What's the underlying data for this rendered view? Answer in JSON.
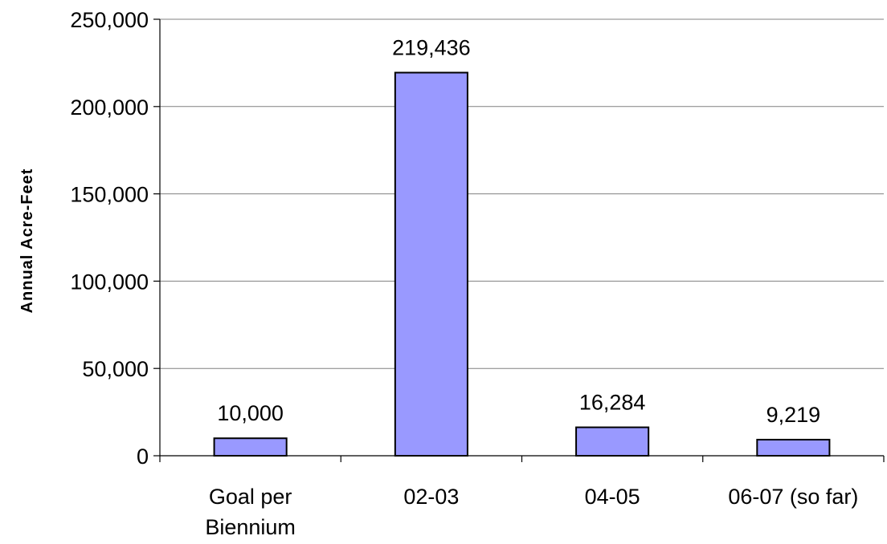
{
  "chart_data": {
    "type": "bar",
    "title": "",
    "xlabel": "",
    "ylabel": "Annual Acre-Feet",
    "categories": [
      [
        "Goal per",
        "Biennium"
      ],
      [
        "02-03"
      ],
      [
        "04-05"
      ],
      [
        "06-07 (so far)"
      ]
    ],
    "values": [
      10000,
      219436,
      16284,
      9219
    ],
    "data_labels": [
      "10,000",
      "219,436",
      "16,284",
      "9,219"
    ],
    "ylim": [
      0,
      250000
    ],
    "yticks": [
      0,
      50000,
      100000,
      150000,
      200000,
      250000
    ],
    "ytick_labels": [
      "0",
      "50,000",
      "100,000",
      "150,000",
      "200,000",
      "250,000"
    ],
    "grid": true,
    "legend": "none",
    "bar_color": "#9999ff",
    "bar_edge_color": "#000000"
  }
}
